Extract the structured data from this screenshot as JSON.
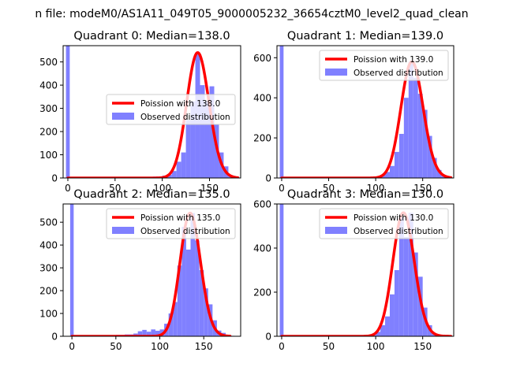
{
  "colors": {
    "background": "#ffffff",
    "observed_bar": "#8080ff",
    "poisson_line": "#ff0000",
    "axis": "#000000"
  },
  "chart_data": {
    "suptitle": "n file: modeM0/AS1A11_049T05_9000005232_36654cztM0_level2_quad_clean",
    "panels": [
      {
        "type": "bar",
        "title": "Quadrant 0: Median=138.0",
        "median": 138.0,
        "xlim": [
          -5,
          183
        ],
        "ylim": [
          0,
          570
        ],
        "xticks": [
          0,
          50,
          100,
          150
        ],
        "yticks": [
          0,
          100,
          200,
          300,
          400,
          500
        ],
        "xtick_labels": [
          "0",
          "50",
          "100",
          "150"
        ],
        "ytick_labels": [
          "0",
          "100",
          "200",
          "300",
          "400",
          "500"
        ],
        "legend": {
          "position": "center-right",
          "entries": [
            "Poission with 138.0",
            "Observed distribution"
          ]
        },
        "bins": [
          [
            -2,
            2,
            570
          ],
          [
            2,
            90,
            3
          ],
          [
            90,
            100,
            6
          ],
          [
            100,
            105,
            10
          ],
          [
            105,
            110,
            14
          ],
          [
            110,
            115,
            30
          ],
          [
            115,
            120,
            70
          ],
          [
            120,
            125,
            110
          ],
          [
            125,
            130,
            250
          ],
          [
            130,
            135,
            330
          ],
          [
            135,
            140,
            540
          ],
          [
            140,
            145,
            400
          ],
          [
            145,
            150,
            330
          ],
          [
            150,
            155,
            395
          ],
          [
            155,
            160,
            230
          ],
          [
            160,
            165,
            110
          ],
          [
            165,
            170,
            50
          ],
          [
            170,
            175,
            12
          ],
          [
            175,
            180,
            3
          ]
        ]
      },
      {
        "type": "bar",
        "title": "Quadrant 1: Median=139.0",
        "median": 139.0,
        "xlim": [
          -5,
          183
        ],
        "ylim": [
          0,
          660
        ],
        "xticks": [
          0,
          50,
          100,
          150
        ],
        "yticks": [
          0,
          200,
          400,
          600
        ],
        "xtick_labels": [
          "0",
          "50",
          "100",
          "150"
        ],
        "ytick_labels": [
          "0",
          "200",
          "400",
          "600"
        ],
        "legend": {
          "position": "upper-right",
          "entries": [
            "Poission with 139.0",
            "Observed distribution"
          ]
        },
        "bins": [
          [
            -2,
            2,
            660
          ],
          [
            2,
            90,
            3
          ],
          [
            90,
            100,
            6
          ],
          [
            100,
            105,
            8
          ],
          [
            105,
            110,
            15
          ],
          [
            110,
            115,
            30
          ],
          [
            115,
            120,
            60
          ],
          [
            120,
            125,
            130
          ],
          [
            125,
            130,
            220
          ],
          [
            130,
            135,
            400
          ],
          [
            135,
            140,
            580
          ],
          [
            140,
            145,
            500
          ],
          [
            145,
            150,
            420
          ],
          [
            150,
            155,
            340
          ],
          [
            155,
            160,
            210
          ],
          [
            160,
            165,
            100
          ],
          [
            165,
            170,
            40
          ],
          [
            170,
            175,
            10
          ],
          [
            175,
            180,
            2
          ]
        ]
      },
      {
        "type": "bar",
        "title": "Quadrant 2: Median=135.0",
        "median": 135.0,
        "xlim": [
          -10,
          192
        ],
        "ylim": [
          0,
          580
        ],
        "xticks": [
          0,
          50,
          100,
          150
        ],
        "yticks": [
          0,
          100,
          200,
          300,
          400,
          500
        ],
        "xtick_labels": [
          "0",
          "50",
          "100",
          "150"
        ],
        "ytick_labels": [
          "0",
          "100",
          "200",
          "300",
          "400",
          "500"
        ],
        "legend": {
          "position": "upper-right",
          "entries": [
            "Poission with 135.0",
            "Observed distribution"
          ]
        },
        "bins": [
          [
            -2,
            2,
            580
          ],
          [
            2,
            50,
            2
          ],
          [
            50,
            60,
            6
          ],
          [
            60,
            70,
            8
          ],
          [
            70,
            75,
            12
          ],
          [
            75,
            80,
            22
          ],
          [
            80,
            85,
            28
          ],
          [
            85,
            90,
            20
          ],
          [
            90,
            95,
            30
          ],
          [
            95,
            100,
            24
          ],
          [
            100,
            105,
            30
          ],
          [
            105,
            110,
            55
          ],
          [
            110,
            115,
            100
          ],
          [
            115,
            120,
            150
          ],
          [
            120,
            125,
            310
          ],
          [
            125,
            130,
            480
          ],
          [
            130,
            135,
            380
          ],
          [
            135,
            140,
            540
          ],
          [
            140,
            145,
            420
          ],
          [
            145,
            150,
            290
          ],
          [
            150,
            155,
            210
          ],
          [
            155,
            160,
            140
          ],
          [
            160,
            165,
            70
          ],
          [
            165,
            170,
            25
          ],
          [
            170,
            175,
            15
          ],
          [
            175,
            180,
            5
          ],
          [
            180,
            185,
            2
          ]
        ]
      },
      {
        "type": "bar",
        "title": "Quadrant 3: Median=130.0",
        "median": 130.0,
        "xlim": [
          -5,
          183
        ],
        "ylim": [
          0,
          600
        ],
        "xticks": [
          0,
          50,
          100,
          150
        ],
        "yticks": [
          0,
          200,
          400,
          600
        ],
        "xtick_labels": [
          "0",
          "50",
          "100",
          "150"
        ],
        "ytick_labels": [
          "0",
          "200",
          "400",
          "600"
        ],
        "legend": {
          "position": "upper-right",
          "entries": [
            "Poission with 130.0",
            "Observed distribution"
          ]
        },
        "bins": [
          [
            -2,
            2,
            600
          ],
          [
            2,
            85,
            2
          ],
          [
            85,
            100,
            5
          ],
          [
            100,
            105,
            20
          ],
          [
            105,
            110,
            50
          ],
          [
            110,
            115,
            90
          ],
          [
            115,
            120,
            190
          ],
          [
            120,
            125,
            300
          ],
          [
            125,
            130,
            540
          ],
          [
            130,
            135,
            450
          ],
          [
            135,
            140,
            560
          ],
          [
            140,
            145,
            380
          ],
          [
            145,
            150,
            270
          ],
          [
            150,
            155,
            130
          ],
          [
            155,
            160,
            50
          ],
          [
            160,
            165,
            12
          ],
          [
            165,
            170,
            3
          ]
        ]
      }
    ]
  }
}
